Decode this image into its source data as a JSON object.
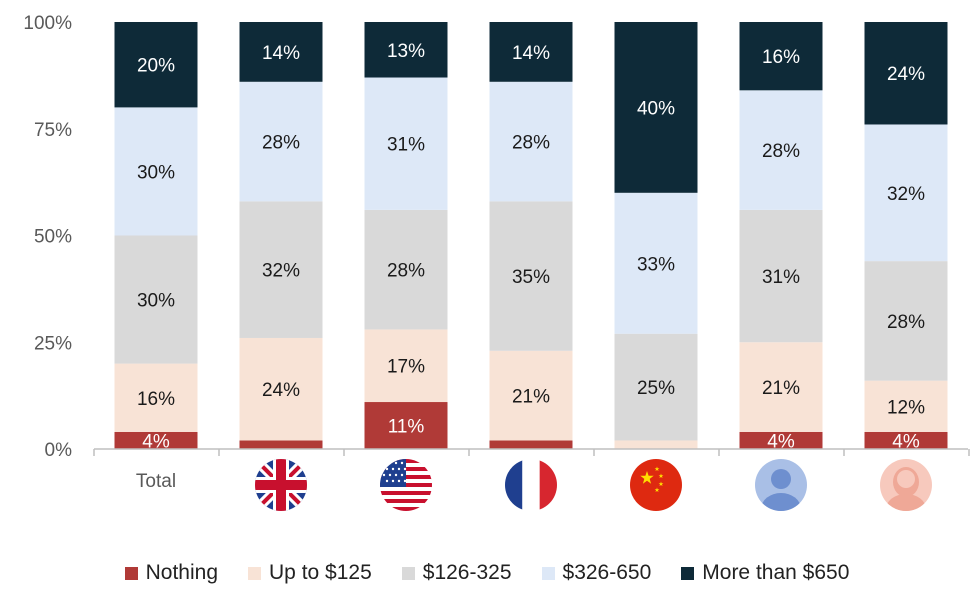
{
  "colors": {
    "nothing": "#B03A37",
    "up_to_125": "#F8E3D6",
    "r126_325": "#D9D9D9",
    "r326_650": "#DDE8F7",
    "more_650": "#0E2A38",
    "axis_text": "#595959",
    "baseline": "#BFBFBF"
  },
  "chart_data": {
    "type": "bar",
    "stacked": true,
    "percent_stacked": true,
    "ylim": [
      0,
      100
    ],
    "y_ticks": [
      "0%",
      "25%",
      "50%",
      "75%",
      "100%"
    ],
    "title": "",
    "xlabel": "",
    "ylabel": "",
    "legend_position": "bottom",
    "grid": false,
    "categories": [
      "Total",
      "UK flag",
      "US flag",
      "France flag",
      "China flag",
      "Male user",
      "Female user"
    ],
    "category_labels": [
      "Total",
      "",
      "",
      "",
      "",
      "",
      ""
    ],
    "category_icons": [
      "",
      "uk-flag-icon",
      "us-flag-icon",
      "france-flag-icon",
      "china-flag-icon",
      "male-user-icon",
      "female-user-icon"
    ],
    "series": [
      {
        "name": "Nothing",
        "color_key": "nothing",
        "values": [
          4,
          2,
          11,
          2,
          0,
          4,
          4
        ],
        "labels": [
          "4%",
          "",
          "11%",
          "",
          "",
          "4%",
          "4%"
        ]
      },
      {
        "name": "Up to $125",
        "color_key": "up_to_125",
        "values": [
          16,
          24,
          17,
          21,
          2,
          21,
          12
        ],
        "labels": [
          "16%",
          "24%",
          "17%",
          "21%",
          "",
          "21%",
          "12%"
        ]
      },
      {
        "name": "$126-325",
        "color_key": "r126_325",
        "values": [
          30,
          32,
          28,
          35,
          25,
          31,
          28
        ],
        "labels": [
          "30%",
          "32%",
          "28%",
          "35%",
          "25%",
          "31%",
          "28%"
        ]
      },
      {
        "name": "$326-650",
        "color_key": "r326_650",
        "values": [
          30,
          28,
          31,
          28,
          33,
          28,
          32
        ],
        "labels": [
          "30%",
          "28%",
          "31%",
          "28%",
          "33%",
          "28%",
          "32%"
        ]
      },
      {
        "name": "More than $650",
        "color_key": "more_650",
        "values": [
          20,
          14,
          13,
          14,
          40,
          16,
          24
        ],
        "labels": [
          "20%",
          "14%",
          "13%",
          "14%",
          "40%",
          "16%",
          "24%"
        ]
      }
    ]
  }
}
